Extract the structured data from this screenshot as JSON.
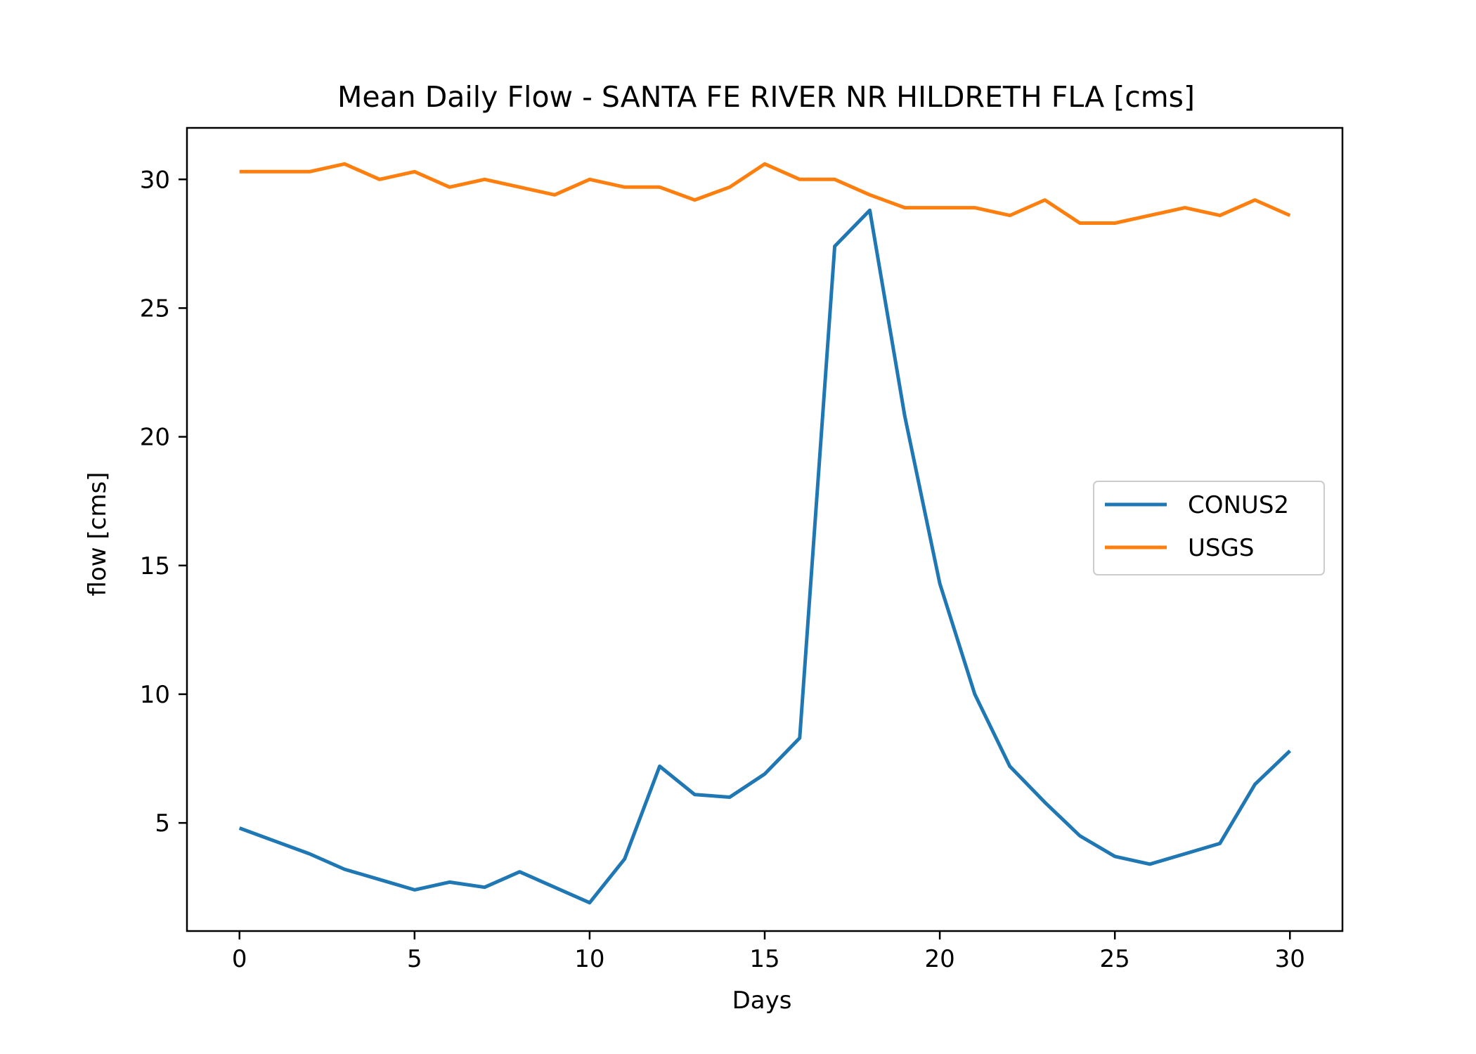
{
  "colors": {
    "conus2": "#1f77b4",
    "usgs": "#ff7f0e",
    "axes": "#000000",
    "background": "#ffffff"
  },
  "chart_data": {
    "type": "line",
    "title": "Mean Daily Flow - SANTA FE RIVER NR HILDRETH FLA [cms]",
    "xlabel": "Days",
    "ylabel": "flow [cms]",
    "xlim": [
      -1.5,
      31.5
    ],
    "ylim": [
      0.8,
      32.0
    ],
    "xticks": [
      0,
      5,
      10,
      15,
      20,
      25,
      30
    ],
    "yticks": [
      5,
      10,
      15,
      20,
      25,
      30
    ],
    "grid": false,
    "legend_position": "center-right",
    "x": [
      0,
      1,
      2,
      3,
      4,
      5,
      6,
      7,
      8,
      9,
      10,
      11,
      12,
      13,
      14,
      15,
      16,
      17,
      18,
      19,
      20,
      21,
      22,
      23,
      24,
      25,
      26,
      27,
      28,
      29,
      30
    ],
    "series": [
      {
        "name": "CONUS2",
        "color": "#1f77b4",
        "values": [
          4.8,
          4.3,
          3.8,
          3.2,
          2.8,
          2.4,
          2.7,
          2.5,
          3.1,
          2.5,
          1.9,
          3.6,
          7.2,
          6.1,
          6.0,
          6.9,
          8.3,
          27.4,
          28.8,
          20.8,
          14.3,
          10.0,
          7.2,
          5.8,
          4.5,
          3.7,
          3.4,
          3.8,
          4.2,
          6.5,
          7.8
        ]
      },
      {
        "name": "USGS",
        "color": "#ff7f0e",
        "values": [
          30.3,
          30.3,
          30.3,
          30.6,
          30.0,
          30.3,
          29.7,
          30.0,
          29.7,
          29.4,
          30.0,
          29.7,
          29.7,
          29.2,
          29.7,
          30.6,
          30.0,
          30.0,
          29.4,
          28.9,
          28.9,
          28.9,
          28.6,
          29.2,
          28.3,
          28.3,
          28.6,
          28.9,
          28.6,
          29.2,
          28.6
        ]
      }
    ]
  }
}
